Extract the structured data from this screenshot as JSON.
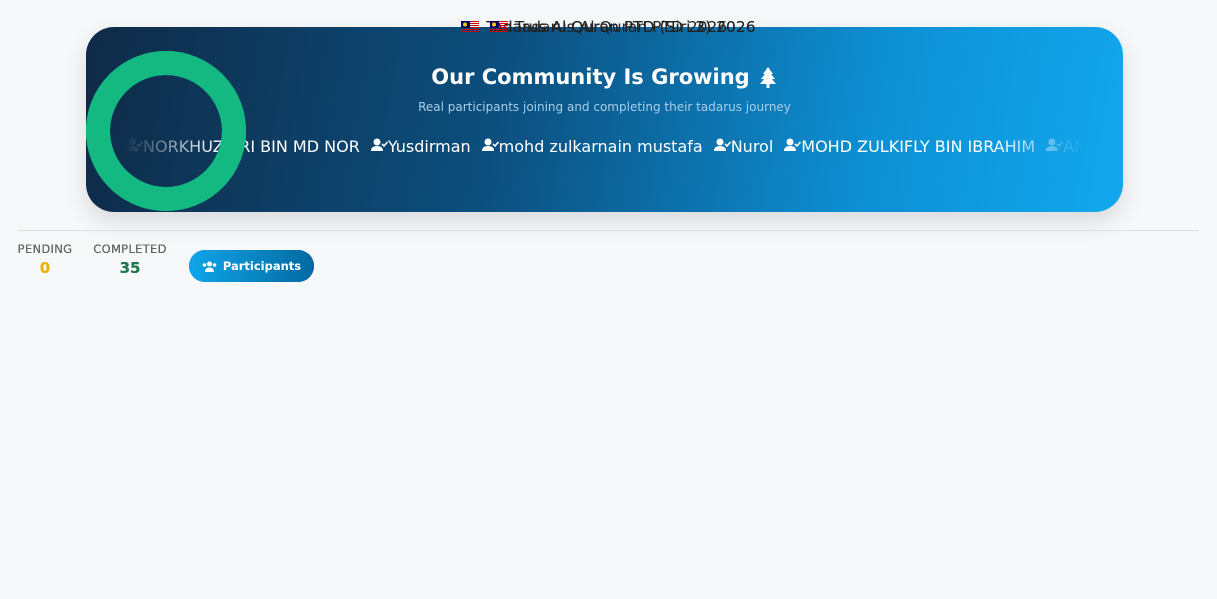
{
  "header": {
    "title": "Our Community Is Growing",
    "subtitle": "Real participants joining and completing their tadarus journey",
    "participants": [
      "NORKHUZAIRI BIN MD NOR",
      "Yusdirman",
      "mohd zulkarnain mustafa",
      "Nurol",
      "MOHD ZULKIFLY BIN IBRAHIM",
      "AMIRA"
    ]
  },
  "cards": [
    {
      "title": "Tadarus Al Quran PTD (Siri 3) 2026",
      "pending": {
        "label": "PENDING",
        "value": 0
      },
      "completed": {
        "label": "COMPLETED",
        "value": 35
      },
      "button": "Participants"
    },
    {
      "title": "Tadarus Al Quran PTD (Siri 2) 2026",
      "pending": {
        "label": "PENDING",
        "value": 0
      },
      "completed": {
        "label": "COMPLETED",
        "value": 35
      },
      "button": "Participants"
    },
    {
      "title": "Tadarus Al Quran PTD 2026",
      "pending": {
        "label": "PENDING",
        "value": 0
      },
      "completed": {
        "label": "COMPLETED",
        "value": 35
      },
      "button": "Participants"
    }
  ]
}
